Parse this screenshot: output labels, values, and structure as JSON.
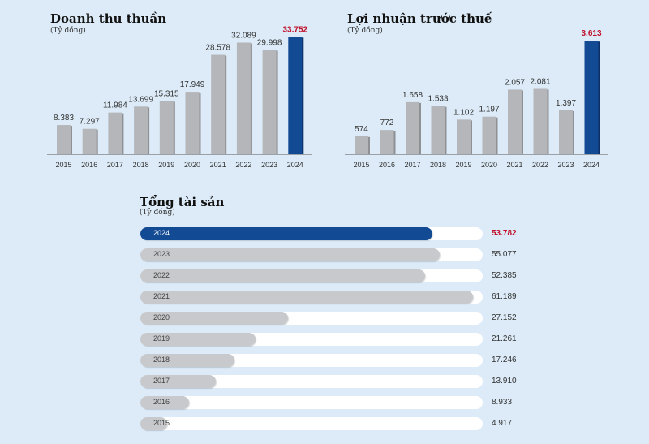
{
  "chart_data": [
    {
      "type": "bar",
      "title": "Doanh thu thuần",
      "subtitle": "(Tỷ đồng)",
      "categories": [
        "2015",
        "2016",
        "2017",
        "2018",
        "2019",
        "2020",
        "2021",
        "2022",
        "2023",
        "2024"
      ],
      "values": [
        8383,
        7297,
        11984,
        13699,
        15315,
        17949,
        28578,
        32089,
        29998,
        33752
      ],
      "value_labels": [
        "8.383",
        "7.297",
        "11.984",
        "13.699",
        "15.315",
        "17.949",
        "28.578",
        "32.089",
        "29.998",
        "33.752"
      ],
      "highlight_index": 9,
      "ylim": [
        0,
        35000
      ]
    },
    {
      "type": "bar",
      "title": "Lợi nhuận trước thuế",
      "subtitle": "(Tỷ đồng)",
      "categories": [
        "2015",
        "2016",
        "2017",
        "2018",
        "2019",
        "2020",
        "2021",
        "2022",
        "2023",
        "2024"
      ],
      "values": [
        574,
        772,
        1658,
        1533,
        1102,
        1197,
        2057,
        2081,
        1397,
        3613
      ],
      "value_labels": [
        "574",
        "772",
        "1.658",
        "1.533",
        "1.102",
        "1.197",
        "2.057",
        "2.081",
        "1.397",
        "3.613"
      ],
      "highlight_index": 9,
      "ylim": [
        0,
        3800
      ]
    },
    {
      "type": "bar",
      "orientation": "horizontal",
      "title": "Tổng tài sản",
      "subtitle": "(Tỷ đồng)",
      "categories": [
        "2024",
        "2023",
        "2022",
        "2021",
        "2020",
        "2019",
        "2018",
        "2017",
        "2016",
        "2015"
      ],
      "values": [
        53782,
        55077,
        52385,
        61189,
        27152,
        21261,
        17246,
        13910,
        8933,
        4917
      ],
      "value_labels": [
        "53.782",
        "55.077",
        "52.385",
        "61.189",
        "27.152",
        "21.261",
        "17.246",
        "13.910",
        "8.933",
        "4.917"
      ],
      "highlight_index": 0,
      "xlim": [
        0,
        61189
      ]
    }
  ],
  "colors": {
    "bar": "#b4b6b9",
    "highlight": "#134a94",
    "highlight_label": "#c0102a"
  }
}
